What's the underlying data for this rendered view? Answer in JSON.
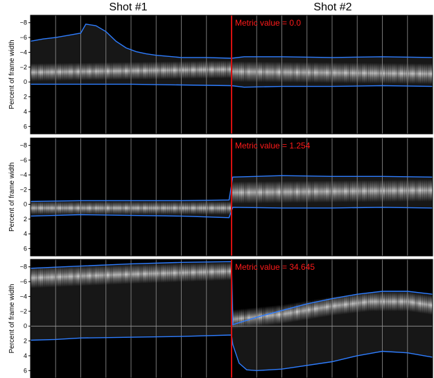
{
  "header": {
    "left_title": "Shot #1",
    "right_title": "Shot #2"
  },
  "colors": {
    "background": "#000000",
    "envelope": "#2e7dff",
    "shot_boundary": "#d81010",
    "metric_text": "#ff1a1a",
    "grid": "#8c8c8c"
  },
  "chart_data": [
    {
      "type": "heatmap",
      "ylabel": "Percent of frame width",
      "yticks": [
        -8,
        -6,
        -4,
        -2,
        0,
        2,
        4,
        6
      ],
      "ylim": [
        7,
        -9
      ],
      "xlim": [
        0,
        16
      ],
      "shot_boundary_x": 8,
      "vertical_gridlines": [
        1,
        2,
        3,
        4,
        5,
        6,
        7,
        9,
        10,
        11,
        12,
        13,
        14,
        15
      ],
      "annotation": "Metric value = 0.0",
      "bright_band": {
        "x": [
          0,
          8,
          8.01,
          16
        ],
        "center": [
          -1.3,
          -1.7,
          -1.4,
          -1.1
        ],
        "halfwidth": [
          1.2,
          1.2,
          1.4,
          1.4
        ]
      },
      "upper_envelope": {
        "x": [
          0,
          0.5,
          1,
          1.5,
          2,
          2.2,
          2.6,
          3,
          3.4,
          3.8,
          4.2,
          4.6,
          5,
          6,
          7,
          8,
          8.5,
          10,
          12,
          14,
          16
        ],
        "y": [
          -5.5,
          -5.8,
          -6.0,
          -6.3,
          -6.6,
          -7.8,
          -7.6,
          -6.8,
          -5.5,
          -4.6,
          -4.1,
          -3.8,
          -3.6,
          -3.3,
          -3.3,
          -3.2,
          -3.4,
          -3.4,
          -3.3,
          -3.4,
          -3.3
        ]
      },
      "lower_envelope": {
        "x": [
          0,
          2,
          4,
          6,
          8,
          8.5,
          10,
          12,
          14,
          16
        ],
        "y": [
          0.3,
          0.3,
          0.3,
          0.4,
          0.5,
          0.7,
          0.6,
          0.6,
          0.5,
          0.6
        ]
      }
    },
    {
      "type": "heatmap",
      "ylabel": "Percent of frame width",
      "yticks": [
        -8,
        -6,
        -4,
        -2,
        0,
        2,
        4,
        6
      ],
      "ylim": [
        7,
        -9
      ],
      "xlim": [
        0,
        16
      ],
      "shot_boundary_x": 8,
      "vertical_gridlines": [
        1,
        2,
        3,
        4,
        5,
        6,
        7,
        9,
        10,
        11,
        12,
        13,
        14,
        15
      ],
      "annotation": "Metric value = 1.254",
      "bright_band": {
        "x": [
          0,
          8,
          8.01,
          16
        ],
        "center": [
          0.5,
          0.5,
          -1.6,
          -1.9
        ],
        "halfwidth": [
          0.9,
          0.9,
          1.5,
          1.5
        ]
      },
      "upper_envelope": {
        "x": [
          0,
          2,
          4,
          6,
          7.9,
          8.05,
          10,
          12,
          14,
          16
        ],
        "y": [
          -0.4,
          -0.5,
          -0.5,
          -0.5,
          -0.6,
          -3.7,
          -3.9,
          -3.8,
          -3.8,
          -3.7
        ]
      },
      "lower_envelope": {
        "x": [
          0,
          2,
          4,
          6,
          7.9,
          8.05,
          10,
          12,
          14,
          16
        ],
        "y": [
          1.6,
          1.4,
          1.5,
          1.6,
          1.8,
          0.4,
          0.5,
          0.5,
          0.4,
          0.5
        ]
      }
    },
    {
      "type": "heatmap",
      "ylabel": "Percent of frame width",
      "yticks": [
        -8,
        -6,
        -4,
        -2,
        0,
        2,
        4,
        6
      ],
      "ylim": [
        7,
        -9
      ],
      "xlim": [
        0,
        16
      ],
      "shot_boundary_x": 8,
      "vertical_gridlines": [
        1,
        2,
        3,
        4,
        5,
        6,
        7,
        9,
        10,
        11,
        12,
        13,
        14,
        15
      ],
      "horizontal_gridline": 0,
      "annotation": "Metric value = 34.645",
      "bright_band": {
        "x": [
          0,
          4,
          8,
          8.01,
          10,
          12,
          13.5,
          15,
          16
        ],
        "center": [
          -6.5,
          -7.0,
          -7.4,
          -0.9,
          -1.6,
          -2.7,
          -3.3,
          -3.3,
          -2.8
        ],
        "halfwidth": [
          1.4,
          1.3,
          1.2,
          1.3,
          1.3,
          1.3,
          1.3,
          1.3,
          1.3
        ]
      },
      "upper_envelope": {
        "x": [
          0,
          2,
          4,
          6,
          8,
          8.05,
          9,
          10,
          11,
          12,
          13,
          14,
          15,
          16
        ],
        "y": [
          -7.8,
          -8.1,
          -8.4,
          -8.6,
          -8.7,
          -0.2,
          -1.2,
          -2.1,
          -3.0,
          -3.7,
          -4.3,
          -4.7,
          -4.7,
          -4.3
        ]
      },
      "lower_envelope": {
        "x": [
          0,
          1,
          2,
          4,
          6,
          8,
          8.05,
          8.3,
          8.6,
          9,
          10,
          12,
          13,
          14,
          15,
          16
        ],
        "y": [
          1.9,
          1.8,
          1.6,
          1.5,
          1.4,
          1.2,
          2.5,
          5.0,
          5.9,
          6.0,
          5.8,
          4.8,
          4.0,
          3.4,
          3.6,
          4.2
        ]
      }
    }
  ]
}
